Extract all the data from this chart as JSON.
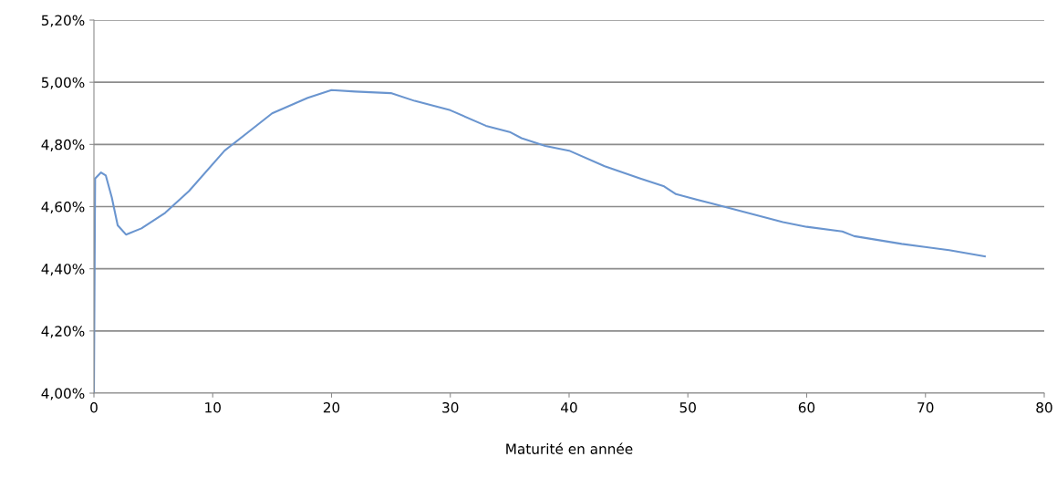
{
  "chart_data": {
    "type": "line",
    "xlabel": "Maturité en année",
    "x": [
      0,
      0.1,
      0.6,
      1.0,
      1.5,
      2.0,
      2.7,
      4,
      6,
      8,
      11,
      13,
      15,
      18,
      20,
      22,
      25,
      27,
      30,
      33,
      35,
      36,
      38,
      40,
      43,
      46,
      48,
      49,
      50,
      52,
      55,
      58,
      60,
      63,
      64,
      68,
      72,
      75
    ],
    "series": [
      {
        "color": "#6a95cf",
        "values": [
          4.0,
          4.69,
          4.71,
          4.7,
          4.63,
          4.54,
          4.51,
          4.53,
          4.58,
          4.65,
          4.78,
          4.84,
          4.9,
          4.95,
          4.975,
          4.97,
          4.965,
          4.94,
          4.91,
          4.86,
          4.84,
          4.82,
          4.795,
          4.78,
          4.73,
          4.69,
          4.665,
          4.64,
          4.63,
          4.61,
          4.58,
          4.55,
          4.535,
          4.52,
          4.505,
          4.48,
          4.46,
          4.44
        ]
      }
    ],
    "xlim": [
      0,
      80
    ],
    "xticks": [
      0,
      10,
      20,
      30,
      40,
      50,
      60,
      70,
      80
    ],
    "ylim": [
      4.0,
      5.2
    ],
    "yticks": [
      {
        "value": 4.0,
        "label": "4,00%"
      },
      {
        "value": 4.2,
        "label": "4,20%"
      },
      {
        "value": 4.4,
        "label": "4,40%"
      },
      {
        "value": 4.6,
        "label": "4,60%"
      },
      {
        "value": 4.8,
        "label": "4,80%"
      },
      {
        "value": 5.0,
        "label": "5,00%"
      },
      {
        "value": 5.2,
        "label": "5,20%"
      }
    ],
    "grid": "y",
    "legend": false,
    "marker": "none",
    "line_style": "solid"
  }
}
